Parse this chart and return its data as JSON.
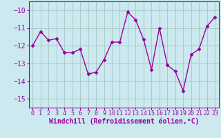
{
  "x": [
    0,
    1,
    2,
    3,
    4,
    5,
    6,
    7,
    8,
    9,
    10,
    11,
    12,
    13,
    14,
    15,
    16,
    17,
    18,
    19,
    20,
    21,
    22,
    23
  ],
  "y": [
    -12.0,
    -11.2,
    -11.7,
    -11.6,
    -12.4,
    -12.4,
    -12.2,
    -13.6,
    -13.5,
    -12.8,
    -11.8,
    -11.8,
    -10.1,
    -10.55,
    -11.65,
    -13.35,
    -11.0,
    -13.1,
    -13.45,
    -14.55,
    -12.5,
    -12.2,
    -10.9,
    -10.4
  ],
  "line_color": "#990099",
  "marker": "D",
  "markersize": 2.5,
  "linewidth": 1.0,
  "xlabel": "Windchill (Refroidissement éolien,°C)",
  "ylabel": "",
  "xlim": [
    -0.5,
    23.5
  ],
  "ylim": [
    -15.5,
    -9.5
  ],
  "yticks": [
    -10,
    -11,
    -12,
    -13,
    -14,
    -15
  ],
  "xticks": [
    0,
    1,
    2,
    3,
    4,
    5,
    6,
    7,
    8,
    9,
    10,
    11,
    12,
    13,
    14,
    15,
    16,
    17,
    18,
    19,
    20,
    21,
    22,
    23
  ],
  "background_color": "#cce9f0",
  "grid_color": "#aacccc",
  "tick_color": "#990099",
  "label_color": "#990099",
  "xlabel_fontsize": 7.0,
  "ytick_fontsize": 7.0,
  "xtick_fontsize": 6.0
}
